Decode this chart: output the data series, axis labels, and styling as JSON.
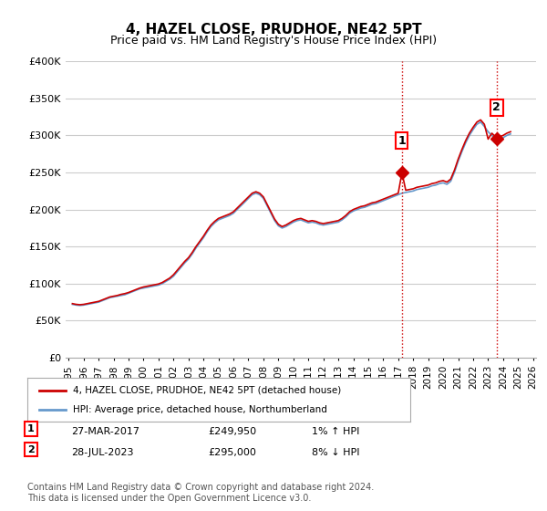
{
  "title": "4, HAZEL CLOSE, PRUDHOE, NE42 5PT",
  "subtitle": "Price paid vs. HM Land Registry's House Price Index (HPI)",
  "ylabel": "",
  "xlabel": "",
  "ylim": [
    0,
    400000
  ],
  "yticks": [
    0,
    50000,
    100000,
    150000,
    200000,
    250000,
    300000,
    350000,
    400000
  ],
  "ytick_labels": [
    "£0",
    "£50K",
    "£100K",
    "£150K",
    "£200K",
    "£250K",
    "£300K",
    "£350K",
    "£400K"
  ],
  "legend_label1": "4, HAZEL CLOSE, PRUDHOE, NE42 5PT (detached house)",
  "legend_label2": "HPI: Average price, detached house, Northumberland",
  "line1_color": "#cc0000",
  "line2_color": "#6699cc",
  "marker1_label": "1",
  "marker1_date": "27-MAR-2017",
  "marker1_price": "£249,950",
  "marker1_hpi": "1% ↑ HPI",
  "marker1_x": 2017.23,
  "marker1_y": 249950,
  "marker2_label": "2",
  "marker2_date": "28-JUL-2023",
  "marker2_price": "£295,000",
  "marker2_hpi": "8% ↓ HPI",
  "marker2_x": 2023.57,
  "marker2_y": 295000,
  "vline_color": "#cc0000",
  "vline_style": ":",
  "footer": "Contains HM Land Registry data © Crown copyright and database right 2024.\nThis data is licensed under the Open Government Licence v3.0.",
  "background_color": "#ffffff",
  "grid_color": "#cccccc",
  "hpi_data": {
    "dates": [
      1995.25,
      1995.5,
      1995.75,
      1996.0,
      1996.25,
      1996.5,
      1996.75,
      1997.0,
      1997.25,
      1997.5,
      1997.75,
      1998.0,
      1998.25,
      1998.5,
      1998.75,
      1999.0,
      1999.25,
      1999.5,
      1999.75,
      2000.0,
      2000.25,
      2000.5,
      2000.75,
      2001.0,
      2001.25,
      2001.5,
      2001.75,
      2002.0,
      2002.25,
      2002.5,
      2002.75,
      2003.0,
      2003.25,
      2003.5,
      2003.75,
      2004.0,
      2004.25,
      2004.5,
      2004.75,
      2005.0,
      2005.25,
      2005.5,
      2005.75,
      2006.0,
      2006.25,
      2006.5,
      2006.75,
      2007.0,
      2007.25,
      2007.5,
      2007.75,
      2008.0,
      2008.25,
      2008.5,
      2008.75,
      2009.0,
      2009.25,
      2009.5,
      2009.75,
      2010.0,
      2010.25,
      2010.5,
      2010.75,
      2011.0,
      2011.25,
      2011.5,
      2011.75,
      2012.0,
      2012.25,
      2012.5,
      2012.75,
      2013.0,
      2013.25,
      2013.5,
      2013.75,
      2014.0,
      2014.25,
      2014.5,
      2014.75,
      2015.0,
      2015.25,
      2015.5,
      2015.75,
      2016.0,
      2016.25,
      2016.5,
      2016.75,
      2017.0,
      2017.25,
      2017.5,
      2017.75,
      2018.0,
      2018.25,
      2018.5,
      2018.75,
      2019.0,
      2019.25,
      2019.5,
      2019.75,
      2020.0,
      2020.25,
      2020.5,
      2020.75,
      2021.0,
      2021.25,
      2021.5,
      2021.75,
      2022.0,
      2022.25,
      2022.5,
      2022.75,
      2023.0,
      2023.25,
      2023.5,
      2023.75,
      2024.0,
      2024.25,
      2024.5
    ],
    "values": [
      72000,
      71000,
      70500,
      71000,
      72000,
      73000,
      74000,
      75000,
      77000,
      79000,
      81000,
      82000,
      83000,
      84000,
      85000,
      87000,
      89000,
      91000,
      93000,
      94000,
      95000,
      96000,
      97000,
      98000,
      100000,
      103000,
      106000,
      110000,
      116000,
      122000,
      128000,
      133000,
      140000,
      148000,
      155000,
      162000,
      170000,
      177000,
      182000,
      186000,
      188000,
      190000,
      192000,
      195000,
      200000,
      205000,
      210000,
      215000,
      220000,
      222000,
      220000,
      215000,
      205000,
      195000,
      185000,
      178000,
      175000,
      177000,
      180000,
      183000,
      185000,
      186000,
      184000,
      182000,
      183000,
      182000,
      180000,
      179000,
      180000,
      181000,
      182000,
      183000,
      186000,
      190000,
      195000,
      198000,
      200000,
      202000,
      203000,
      205000,
      207000,
      208000,
      210000,
      212000,
      214000,
      216000,
      218000,
      220000,
      222000,
      223000,
      224000,
      225000,
      227000,
      228000,
      229000,
      230000,
      232000,
      233000,
      235000,
      236000,
      234000,
      238000,
      250000,
      265000,
      278000,
      290000,
      300000,
      308000,
      315000,
      318000,
      312000,
      305000,
      300000,
      295000,
      295000,
      297000,
      300000,
      302000
    ]
  },
  "prop_data": {
    "dates": [
      1995.25,
      1995.5,
      1995.75,
      1996.0,
      1996.25,
      1996.5,
      1996.75,
      1997.0,
      1997.25,
      1997.5,
      1997.75,
      1998.0,
      1998.25,
      1998.5,
      1998.75,
      1999.0,
      1999.25,
      1999.5,
      1999.75,
      2000.0,
      2000.25,
      2000.5,
      2000.75,
      2001.0,
      2001.25,
      2001.5,
      2001.75,
      2002.0,
      2002.25,
      2002.5,
      2002.75,
      2003.0,
      2003.25,
      2003.5,
      2003.75,
      2004.0,
      2004.25,
      2004.5,
      2004.75,
      2005.0,
      2005.25,
      2005.5,
      2005.75,
      2006.0,
      2006.25,
      2006.5,
      2006.75,
      2007.0,
      2007.25,
      2007.5,
      2007.75,
      2008.0,
      2008.25,
      2008.5,
      2008.75,
      2009.0,
      2009.25,
      2009.5,
      2009.75,
      2010.0,
      2010.25,
      2010.5,
      2010.75,
      2011.0,
      2011.25,
      2011.5,
      2011.75,
      2012.0,
      2012.25,
      2012.5,
      2012.75,
      2013.0,
      2013.25,
      2013.5,
      2013.75,
      2014.0,
      2014.25,
      2014.5,
      2014.75,
      2015.0,
      2015.25,
      2015.5,
      2015.75,
      2016.0,
      2016.25,
      2016.5,
      2016.75,
      2017.0,
      2017.25,
      2017.5,
      2017.75,
      2018.0,
      2018.25,
      2018.5,
      2018.75,
      2019.0,
      2019.25,
      2019.5,
      2019.75,
      2020.0,
      2020.25,
      2020.5,
      2020.75,
      2021.0,
      2021.25,
      2021.5,
      2021.75,
      2022.0,
      2022.25,
      2022.5,
      2022.75,
      2023.0,
      2023.25,
      2023.5,
      2023.75,
      2024.0,
      2024.25,
      2024.5
    ],
    "values": [
      73000,
      72000,
      71500,
      72000,
      73000,
      74000,
      75000,
      76000,
      78000,
      80000,
      82000,
      83000,
      84000,
      85500,
      86500,
      88000,
      90000,
      92000,
      94000,
      95500,
      96500,
      97500,
      98500,
      99500,
      101500,
      104500,
      107500,
      112000,
      118000,
      124000,
      130000,
      135000,
      142000,
      150000,
      157000,
      164000,
      172000,
      179000,
      184000,
      188000,
      190000,
      192000,
      194000,
      197000,
      202000,
      207000,
      212000,
      217000,
      222000,
      224000,
      222000,
      217000,
      207000,
      197000,
      187000,
      180000,
      177000,
      179000,
      182000,
      185000,
      187000,
      188000,
      186000,
      184000,
      185000,
      184000,
      182000,
      181000,
      182000,
      183000,
      184000,
      185000,
      188000,
      192000,
      197000,
      200000,
      202000,
      204000,
      205000,
      207000,
      209000,
      210000,
      212000,
      214000,
      216000,
      218000,
      220000,
      222000,
      249950,
      226000,
      227000,
      228000,
      230000,
      231000,
      232000,
      233000,
      235000,
      236000,
      238000,
      239000,
      237000,
      241000,
      253000,
      268000,
      281000,
      293000,
      303000,
      311000,
      318000,
      321000,
      315000,
      295000,
      303000,
      298000,
      298000,
      300000,
      303000,
      305000
    ]
  },
  "xtick_years": [
    1995,
    1996,
    1997,
    1998,
    1999,
    2000,
    2001,
    2002,
    2003,
    2004,
    2005,
    2006,
    2007,
    2008,
    2009,
    2010,
    2011,
    2012,
    2013,
    2014,
    2015,
    2016,
    2017,
    2018,
    2019,
    2020,
    2021,
    2022,
    2023,
    2024,
    2025,
    2026
  ]
}
